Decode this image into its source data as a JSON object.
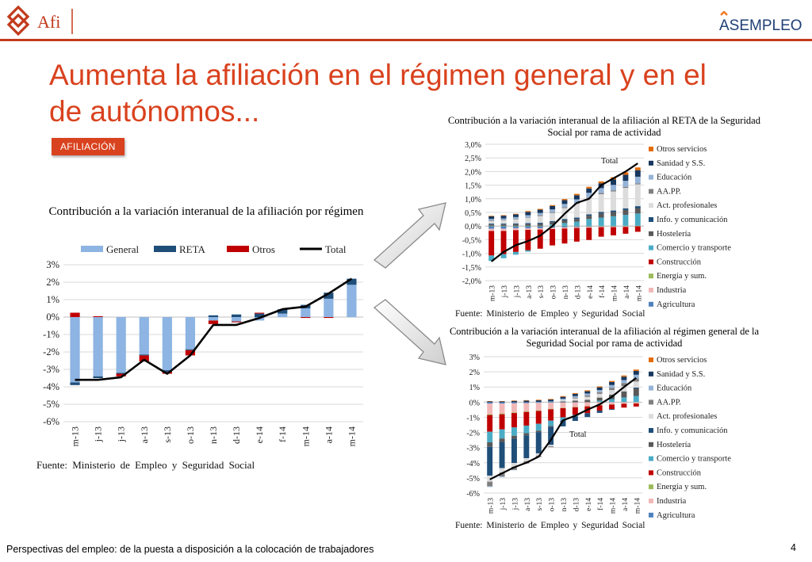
{
  "header": {
    "afi_logo_text": "Afi",
    "asempleo_logo_text": "ASEMPLEO"
  },
  "title": "Aumenta la afiliación en el régimen general y en el de autónomos...",
  "badge": "AFILIACIÓN",
  "footer": {
    "text": "Perspectivas del empleo: de la puesta a disposición a la colocación de trabajadores",
    "page": "4"
  },
  "colors": {
    "accent": "#d9421e",
    "general": "#8db4e2",
    "reta": "#1f4e79",
    "otros": "#c00000",
    "total": "#000000"
  },
  "chart_data": [
    {
      "type": "bar",
      "stacked": true,
      "title": "Contribución a la variación interanual de la afiliación por régimen",
      "source": "Fuente:  Ministerio de Empleo y Seguridad Social",
      "categories": [
        "m-13",
        "j-13",
        "j-13",
        "a-13",
        "s-13",
        "o-13",
        "n-13",
        "d-13",
        "e-14",
        "f-14",
        "m-14",
        "a-14",
        "m-14"
      ],
      "ylim": [
        -6,
        3
      ],
      "yticks": [
        "3%",
        "2%",
        "1%",
        "0%",
        "-1%",
        "-2%",
        "-3%",
        "-4%",
        "-5%",
        "-6%"
      ],
      "legend_position": "top",
      "series": [
        {
          "name": "General",
          "color": "#8db4e2",
          "values": [
            -3.75,
            -3.4,
            -3.2,
            -2.15,
            -3.05,
            -1.85,
            -0.2,
            -0.25,
            -0.2,
            0.2,
            0.5,
            1.05,
            1.85
          ]
        },
        {
          "name": "RETA",
          "color": "#1f4e79",
          "values": [
            -0.15,
            -0.1,
            -0.05,
            -0.05,
            -0.1,
            -0.05,
            0.1,
            0.15,
            0.2,
            0.25,
            0.2,
            0.35,
            0.35
          ]
        },
        {
          "name": "Otros",
          "color": "#c00000",
          "values": [
            0.25,
            0.05,
            -0.15,
            -0.35,
            -0.1,
            -0.3,
            -0.2,
            -0.05,
            0.05,
            0,
            -0.05,
            -0.05,
            0
          ]
        },
        {
          "name": "Total",
          "type": "line",
          "color": "#000000",
          "values": [
            -3.6,
            -3.6,
            -3.45,
            -2.45,
            -3.25,
            -2.2,
            -0.45,
            -0.45,
            -0.05,
            0.45,
            0.6,
            1.35,
            2.2
          ]
        }
      ]
    },
    {
      "type": "bar",
      "stacked": true,
      "title": "Contribución a la variación interanual de la afiliación al RETA de la Seguridad Social por rama de actividad",
      "source": "Fuente:  Ministerio de Empleo y Seguridad Social",
      "categories": [
        "m-13",
        "j-13",
        "j-13",
        "a-13",
        "s-13",
        "o-13",
        "n-13",
        "d-13",
        "e-14",
        "f-14",
        "m-14",
        "a-14",
        "m-14"
      ],
      "ylim": [
        -2,
        3
      ],
      "yticks": [
        "3,0%",
        "2,5%",
        "2,0%",
        "1,5%",
        "1,0%",
        "0,5%",
        "0,0%",
        "-0,5%",
        "-1,0%",
        "-1,5%",
        "-2,0%"
      ],
      "legend_position": "right",
      "annotation": "Total",
      "series": [
        {
          "name": "Agricultura",
          "color": "#4f81bd",
          "values": [
            -0.1,
            -0.1,
            -0.08,
            -0.08,
            -0.08,
            -0.06,
            -0.05,
            -0.04,
            -0.03,
            -0.02,
            -0.02,
            -0.01,
            0
          ]
        },
        {
          "name": "Industria",
          "color": "#f2b8b8",
          "values": [
            -0.08,
            -0.08,
            -0.07,
            -0.06,
            -0.05,
            -0.05,
            -0.04,
            -0.03,
            -0.03,
            -0.02,
            -0.02,
            -0.02,
            -0.01
          ]
        },
        {
          "name": "Energía y sum.",
          "color": "#9bbb59",
          "values": [
            0.01,
            0.01,
            0.01,
            0.01,
            0.01,
            0.01,
            0.01,
            0.01,
            0.01,
            0.01,
            0.01,
            0.01,
            0.01
          ]
        },
        {
          "name": "Construcción",
          "color": "#c00000",
          "values": [
            -0.9,
            -0.85,
            -0.8,
            -0.75,
            -0.7,
            -0.6,
            -0.55,
            -0.5,
            -0.45,
            -0.35,
            -0.3,
            -0.25,
            -0.2
          ]
        },
        {
          "name": "Comercio y transporte",
          "color": "#4bacc6",
          "values": [
            -0.2,
            -0.15,
            -0.1,
            -0.05,
            0,
            0.05,
            0.1,
            0.15,
            0.25,
            0.3,
            0.35,
            0.4,
            0.45
          ]
        },
        {
          "name": "Hostelería",
          "color": "#595959",
          "values": [
            0.05,
            0.05,
            0.06,
            0.06,
            0.07,
            0.08,
            0.1,
            0.1,
            0.12,
            0.15,
            0.15,
            0.18,
            0.2
          ]
        },
        {
          "name": "Info. y comunicación",
          "color": "#1f4e79",
          "values": [
            0.03,
            0.03,
            0.03,
            0.04,
            0.04,
            0.04,
            0.05,
            0.05,
            0.05,
            0.06,
            0.06,
            0.06,
            0.07
          ]
        },
        {
          "name": "Act. profesionales",
          "color": "#dcdcdc",
          "values": [
            0.1,
            0.12,
            0.15,
            0.2,
            0.25,
            0.3,
            0.4,
            0.5,
            0.6,
            0.65,
            0.7,
            0.75,
            0.8
          ]
        },
        {
          "name": "AA.PP.",
          "color": "#7f7f7f",
          "values": [
            0.02,
            0.02,
            0.02,
            0.02,
            0.03,
            0.03,
            0.03,
            0.03,
            0.03,
            0.04,
            0.04,
            0.04,
            0.04
          ]
        },
        {
          "name": "Educación",
          "color": "#95b3d7",
          "values": [
            0.05,
            0.05,
            0.06,
            0.07,
            0.08,
            0.1,
            0.12,
            0.14,
            0.16,
            0.18,
            0.2,
            0.22,
            0.24
          ]
        },
        {
          "name": "Sanidad y S.S.",
          "color": "#17375e",
          "values": [
            0.1,
            0.1,
            0.1,
            0.12,
            0.12,
            0.13,
            0.14,
            0.15,
            0.16,
            0.18,
            0.2,
            0.22,
            0.24
          ]
        },
        {
          "name": "Otros servicios",
          "color": "#e36c09",
          "values": [
            0.02,
            0.02,
            0.02,
            0.03,
            0.03,
            0.03,
            0.04,
            0.05,
            0.06,
            0.07,
            0.08,
            0.09,
            0.1
          ]
        },
        {
          "name": "Total",
          "type": "line",
          "color": "#000000",
          "values": [
            -1.3,
            -0.95,
            -0.7,
            -0.55,
            -0.35,
            0,
            0.45,
            0.85,
            1.0,
            1.5,
            1.75,
            2.0,
            2.3
          ]
        }
      ]
    },
    {
      "type": "bar",
      "stacked": true,
      "title": "Contribución a la variación interanual de la afiliación al régimen general de la Seguridad Social por rama de actividad",
      "source": "Fuente:  Ministerio de Empleo y Seguridad Social",
      "categories": [
        "m-13",
        "j-13",
        "j-13",
        "a-13",
        "s-13",
        "o-13",
        "n-13",
        "d-13",
        "e-14",
        "f-14",
        "m-14",
        "a-14",
        "m-14"
      ],
      "ylim": [
        -6,
        3
      ],
      "yticks": [
        "3%",
        "2%",
        "1%",
        "0%",
        "-1%",
        "-2%",
        "-3%",
        "-4%",
        "-5%",
        "-6%"
      ],
      "legend_position": "right",
      "annotation": "Total",
      "series": [
        {
          "name": "Agricultura",
          "color": "#4f81bd",
          "values": [
            -0.1,
            -0.1,
            -0.08,
            -0.06,
            -0.05,
            -0.04,
            -0.03,
            -0.02,
            -0.01,
            0,
            0,
            0.01,
            0.01
          ]
        },
        {
          "name": "Industria",
          "color": "#f2b8b8",
          "values": [
            -0.7,
            -0.65,
            -0.6,
            -0.55,
            -0.5,
            -0.4,
            -0.35,
            -0.3,
            -0.25,
            -0.2,
            -0.15,
            -0.1,
            -0.08
          ]
        },
        {
          "name": "Energía y sum.",
          "color": "#9bbb59",
          "values": [
            -0.05,
            -0.05,
            -0.04,
            -0.04,
            -0.03,
            -0.03,
            -0.02,
            -0.02,
            -0.02,
            -0.01,
            -0.01,
            -0.01,
            -0.01
          ]
        },
        {
          "name": "Construcción",
          "color": "#c00000",
          "values": [
            -1.1,
            -1.0,
            -0.95,
            -0.9,
            -0.85,
            -0.75,
            -0.6,
            -0.5,
            -0.45,
            -0.35,
            -0.3,
            -0.25,
            -0.2
          ]
        },
        {
          "name": "Comercio y transporte",
          "color": "#4bacc6",
          "values": [
            -0.7,
            -0.6,
            -0.55,
            -0.5,
            -0.45,
            -0.35,
            -0.2,
            -0.1,
            0,
            0.1,
            0.2,
            0.3,
            0.4
          ]
        },
        {
          "name": "Hostelería",
          "color": "#595959",
          "values": [
            -0.3,
            -0.25,
            -0.2,
            -0.15,
            -0.1,
            -0.05,
            0.05,
            0.1,
            0.15,
            0.2,
            0.3,
            0.4,
            0.5
          ]
        },
        {
          "name": "Info. y comunicación",
          "color": "#1f4e79",
          "values": [
            -1.9,
            -1.7,
            -1.6,
            -1.5,
            -1.4,
            -1.2,
            -0.4,
            -0.3,
            -0.25,
            -0.15,
            -0.05,
            0,
            0.05
          ]
        },
        {
          "name": "Act. profesionales",
          "color": "#dcdcdc",
          "values": [
            -0.4,
            -0.3,
            -0.25,
            -0.2,
            -0.15,
            -0.1,
            0.1,
            0.15,
            0.2,
            0.25,
            0.3,
            0.35,
            0.4
          ]
        },
        {
          "name": "AA.PP.",
          "color": "#7f7f7f",
          "values": [
            -0.3,
            -0.25,
            -0.2,
            -0.15,
            -0.1,
            -0.05,
            0,
            0.05,
            0.1,
            0.1,
            0.15,
            0.2,
            0.2
          ]
        },
        {
          "name": "Educación",
          "color": "#95b3d7",
          "values": [
            -0.05,
            -0.05,
            -0.02,
            0,
            0.02,
            0.05,
            0.08,
            0.1,
            0.12,
            0.15,
            0.18,
            0.2,
            0.25
          ]
        },
        {
          "name": "Sanidad y S.S.",
          "color": "#17375e",
          "values": [
            0.05,
            0.05,
            0.08,
            0.1,
            0.1,
            0.12,
            0.12,
            0.15,
            0.15,
            0.18,
            0.2,
            0.22,
            0.25
          ]
        },
        {
          "name": "Otros servicios",
          "color": "#e36c09",
          "values": [
            0.02,
            0.02,
            0.03,
            0.03,
            0.04,
            0.04,
            0.05,
            0.05,
            0.06,
            0.06,
            0.07,
            0.08,
            0.09
          ]
        },
        {
          "name": "Total",
          "type": "line",
          "color": "#000000",
          "values": [
            -5.1,
            -4.7,
            -4.3,
            -4.0,
            -3.6,
            -2.5,
            -1.2,
            -0.9,
            -0.5,
            -0.15,
            0.35,
            1.0,
            1.6
          ]
        }
      ]
    }
  ]
}
